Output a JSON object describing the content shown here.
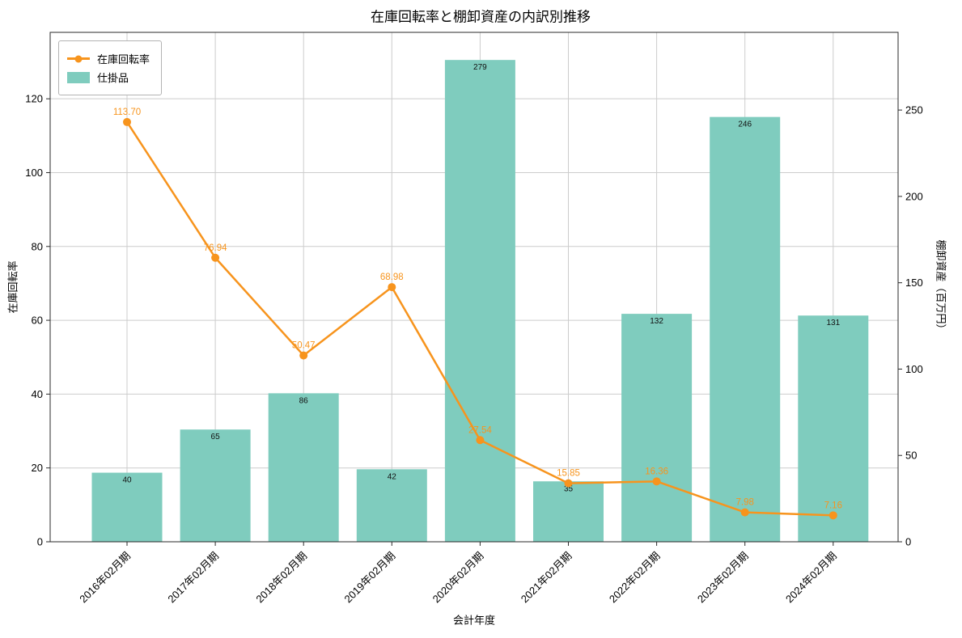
{
  "chart_data": {
    "type": "combo",
    "title": "在庫回転率と棚卸資産の内訳別推移",
    "xlabel": "会計年度",
    "ylabel_left": "在庫回転率",
    "ylabel_right": "棚卸資産（百万円）",
    "categories": [
      "2016年02月期",
      "2017年02月期",
      "2018年02月期",
      "2019年02月期",
      "2020年02月期",
      "2021年02月期",
      "2022年02月期",
      "2023年02月期",
      "2024年02月期"
    ],
    "series": [
      {
        "name": "在庫回転率",
        "type": "line",
        "axis": "left",
        "color": "#f7941d",
        "values": [
          113.7,
          76.94,
          50.47,
          68.98,
          27.54,
          15.85,
          16.36,
          7.98,
          7.16
        ],
        "labels": [
          "113.70",
          "76.94",
          "50.47",
          "68.98",
          "27.54",
          "15.85",
          "16.36",
          "7.98",
          "7.16"
        ]
      },
      {
        "name": "仕掛品",
        "type": "bar",
        "axis": "right",
        "color": "#7fccbe",
        "values": [
          40,
          65,
          86,
          42,
          279,
          35,
          132,
          246,
          131
        ],
        "labels": [
          "40",
          "65",
          "86",
          "42",
          "279",
          "35",
          "132",
          "246",
          "131"
        ]
      }
    ],
    "ylim_left": [
      0,
      138
    ],
    "ylim_right": [
      0,
      295
    ],
    "yticks_left": [
      0,
      20,
      40,
      60,
      80,
      100,
      120
    ],
    "yticks_right": [
      0,
      50,
      100,
      150,
      200,
      250
    ],
    "grid": true,
    "grid_color": "#cccccc",
    "legend_position": "upper-left"
  }
}
